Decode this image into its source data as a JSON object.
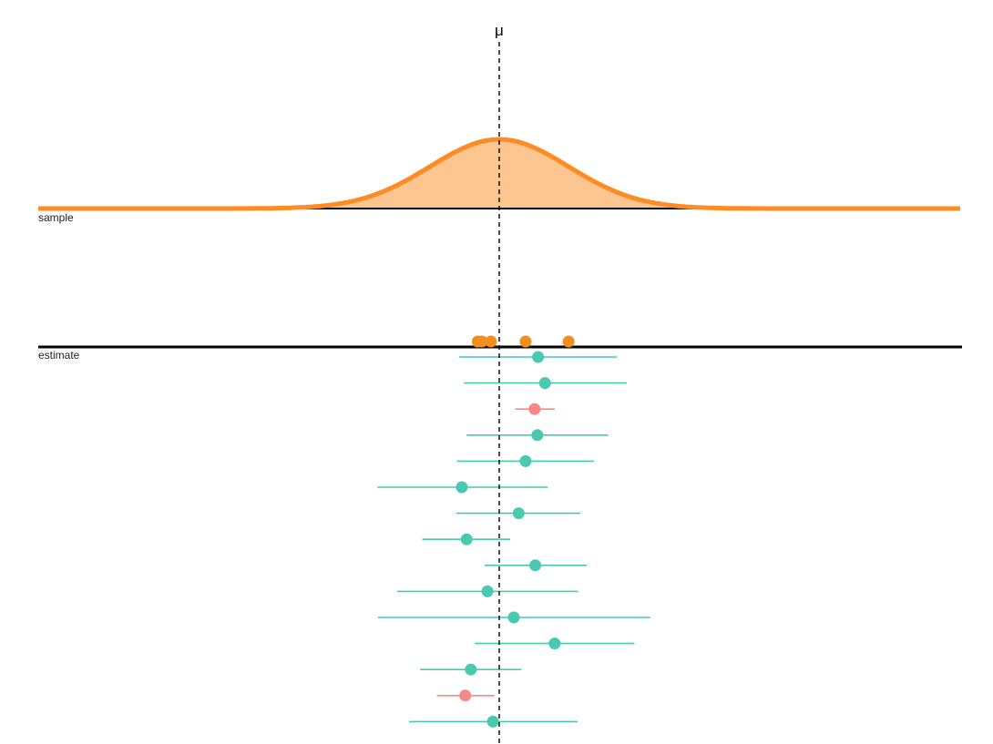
{
  "chart_data": {
    "type": "scatter",
    "title": "",
    "mu_label": "μ",
    "xlabel": "",
    "ylabel": "",
    "grid": false,
    "legend": null,
    "panels": [
      "sample",
      "estimate"
    ],
    "xlim": [
      -6.65,
      6.65
    ],
    "mu": 0,
    "population_density": {
      "type": "area",
      "distribution": "normal",
      "mean": 0,
      "sd": 1,
      "fill_color": "#FDC590",
      "line_color": "#FF8C23"
    },
    "sample_points": {
      "color": "#F28E1C",
      "x": [
        -0.31,
        -0.25,
        -0.12,
        0.38,
        1.0
      ]
    },
    "estimates": {
      "colors": {
        "covers_mu": "#48C9B0",
        "misses_mu": "#F88787"
      },
      "rows": [
        {
          "point": 0.56,
          "lower": -0.58,
          "upper": 1.7,
          "covers_mu": true
        },
        {
          "point": 0.66,
          "lower": -0.51,
          "upper": 1.84,
          "covers_mu": true
        },
        {
          "point": 0.51,
          "lower": 0.23,
          "upper": 0.8,
          "covers_mu": false
        },
        {
          "point": 0.55,
          "lower": -0.47,
          "upper": 1.57,
          "covers_mu": true
        },
        {
          "point": 0.38,
          "lower": -0.61,
          "upper": 1.37,
          "covers_mu": true
        },
        {
          "point": -0.54,
          "lower": -1.76,
          "upper": 0.7,
          "covers_mu": true
        },
        {
          "point": 0.28,
          "lower": -0.62,
          "upper": 1.17,
          "covers_mu": true
        },
        {
          "point": -0.47,
          "lower": -1.11,
          "upper": 0.16,
          "covers_mu": true
        },
        {
          "point": 0.52,
          "lower": -0.21,
          "upper": 1.26,
          "covers_mu": true
        },
        {
          "point": -0.17,
          "lower": -1.47,
          "upper": 1.14,
          "covers_mu": true
        },
        {
          "point": 0.21,
          "lower": -1.75,
          "upper": 2.18,
          "covers_mu": true
        },
        {
          "point": 0.8,
          "lower": -0.35,
          "upper": 1.95,
          "covers_mu": true
        },
        {
          "point": -0.41,
          "lower": -1.14,
          "upper": 0.32,
          "covers_mu": true
        },
        {
          "point": -0.49,
          "lower": -0.9,
          "upper": -0.07,
          "covers_mu": false
        },
        {
          "point": -0.09,
          "lower": -1.3,
          "upper": 1.13,
          "covers_mu": true
        }
      ]
    }
  },
  "labels": {
    "mu": "μ",
    "sample_panel": "sample",
    "estimate_panel": "estimate"
  }
}
